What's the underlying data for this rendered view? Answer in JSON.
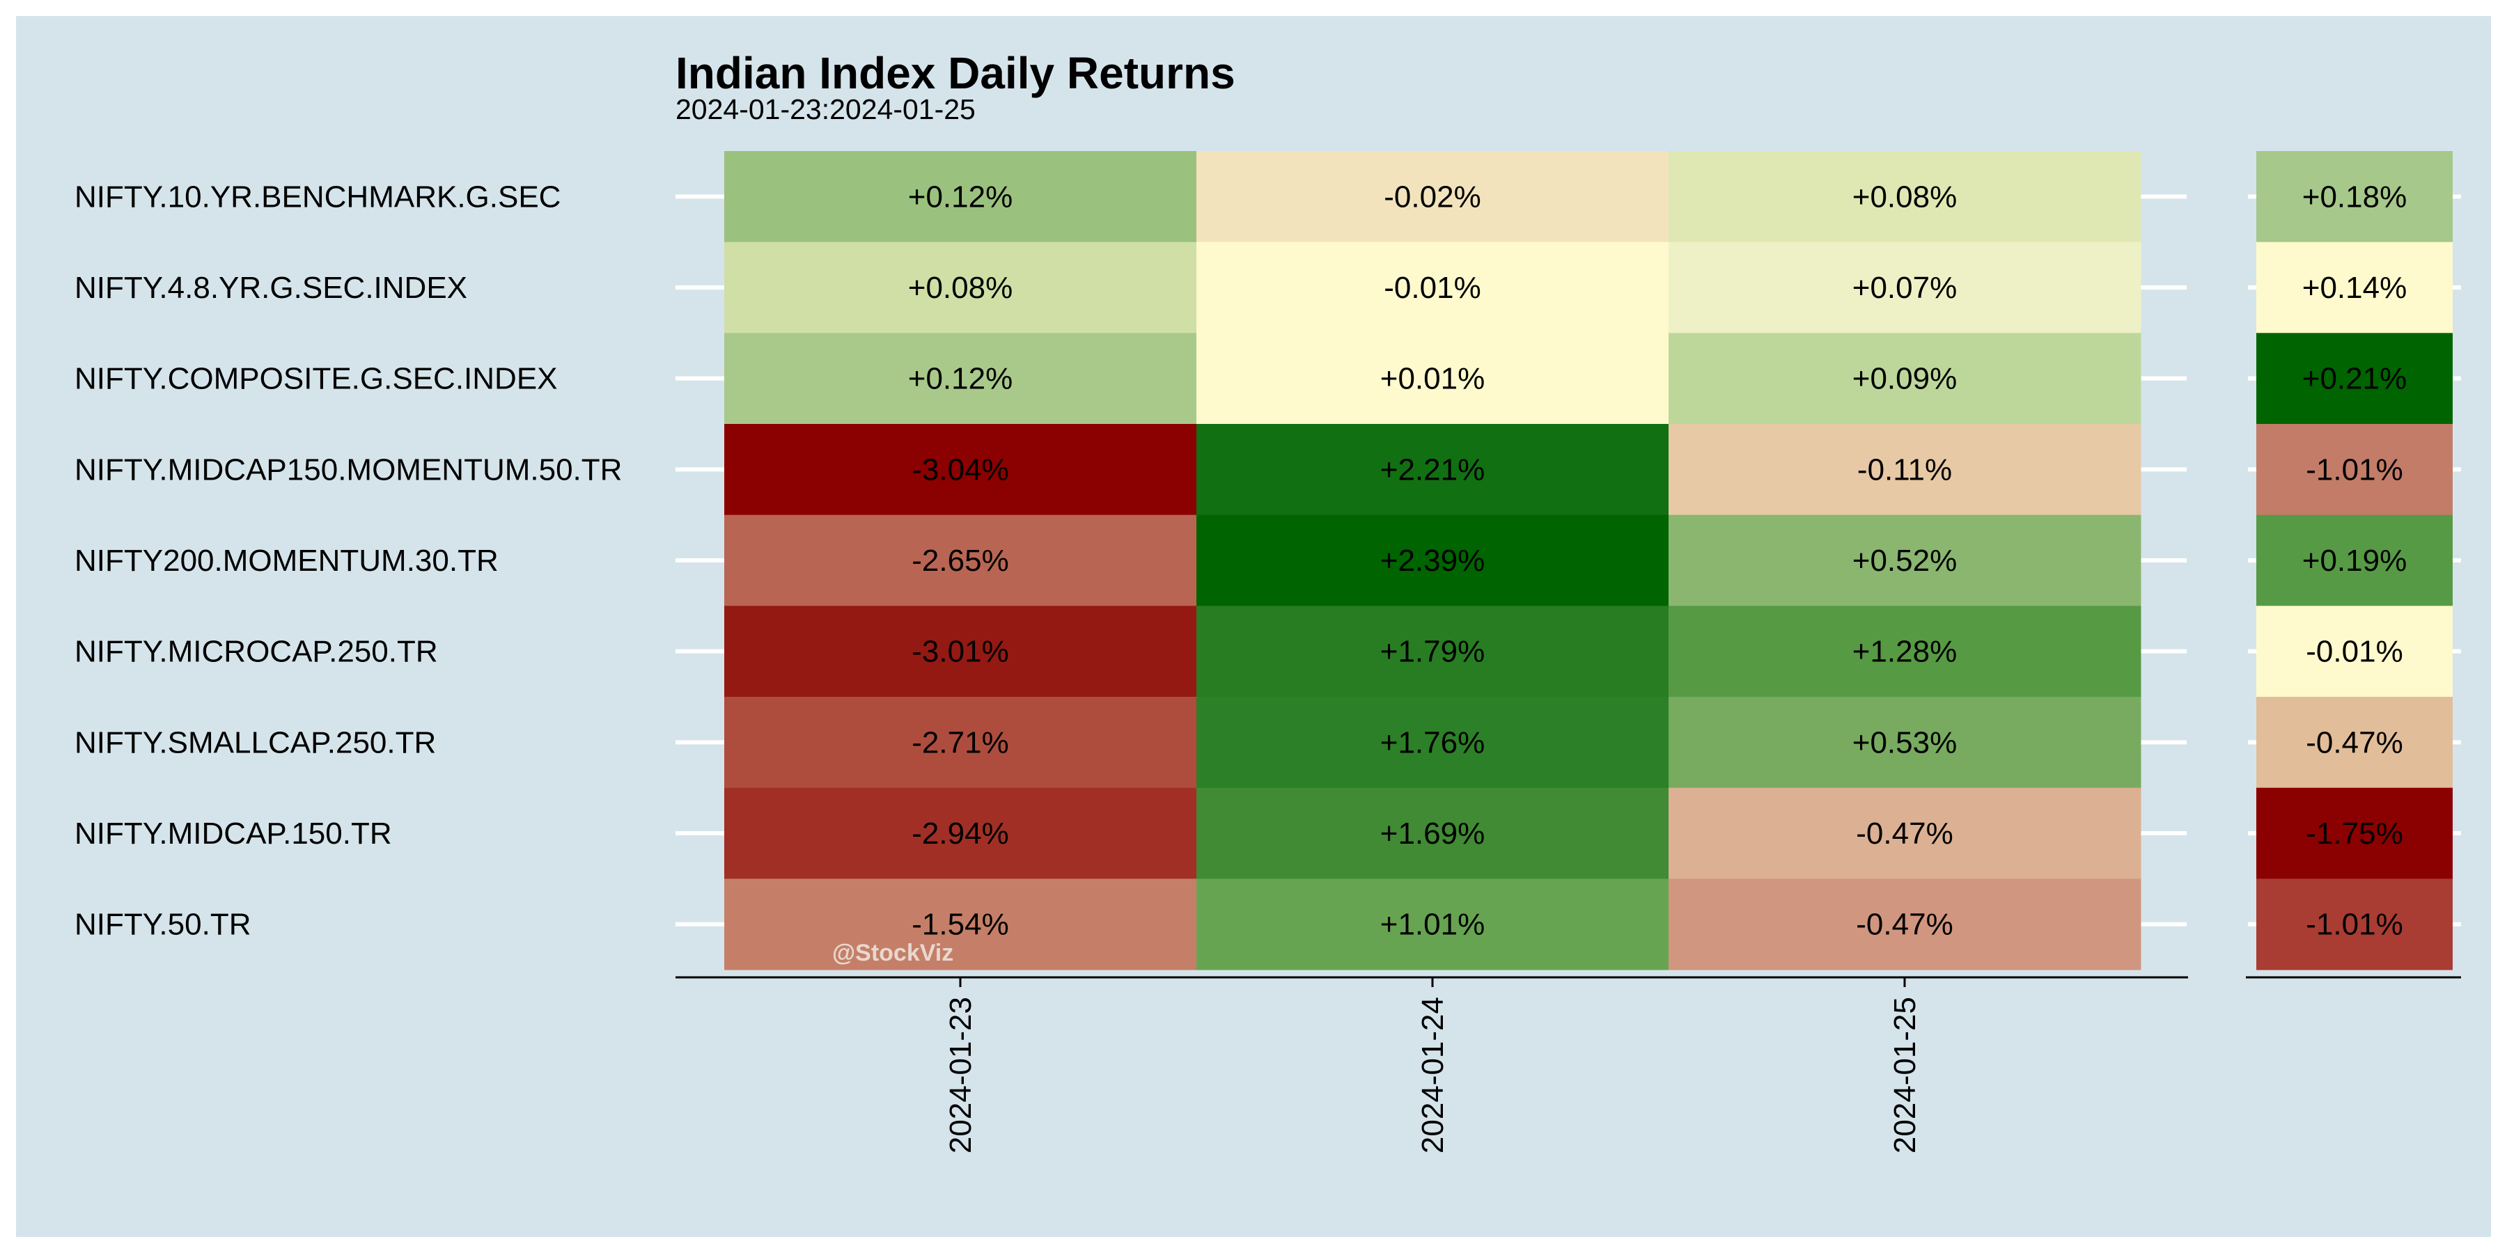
{
  "chart_data": {
    "type": "heatmap",
    "title": "Indian Index Daily Returns",
    "subtitle": "2024-01-23:2024-01-25",
    "watermark": "@StockViz",
    "rows": [
      "NIFTY.10.YR.BENCHMARK.G.SEC",
      "NIFTY.4.8.YR.G.SEC.INDEX",
      "NIFTY.COMPOSITE.G.SEC.INDEX",
      "NIFTY.MIDCAP150.MOMENTUM.50.TR",
      "NIFTY200.MOMENTUM.30.TR",
      "NIFTY.MICROCAP.250.TR",
      "NIFTY.SMALLCAP.250.TR",
      "NIFTY.MIDCAP.150.TR",
      "NIFTY.50.TR"
    ],
    "columns": [
      "2024-01-23",
      "2024-01-24",
      "2024-01-25"
    ],
    "values": [
      [
        0.12,
        -0.02,
        0.08
      ],
      [
        0.08,
        -0.01,
        0.07
      ],
      [
        0.12,
        0.01,
        0.09
      ],
      [
        -3.04,
        2.21,
        -0.11
      ],
      [
        -2.65,
        2.39,
        0.52
      ],
      [
        -3.01,
        1.79,
        1.28
      ],
      [
        -2.71,
        1.76,
        0.53
      ],
      [
        -2.94,
        1.69,
        -0.47
      ],
      [
        -1.54,
        1.01,
        -0.47
      ]
    ],
    "labels": [
      [
        "+0.12%",
        "-0.02%",
        "+0.08%"
      ],
      [
        "+0.08%",
        "-0.01%",
        "+0.07%"
      ],
      [
        "+0.12%",
        "+0.01%",
        "+0.09%"
      ],
      [
        "-3.04%",
        "+2.21%",
        "-0.11%"
      ],
      [
        "-2.65%",
        "+2.39%",
        "+0.52%"
      ],
      [
        "-3.01%",
        "+1.79%",
        "+1.28%"
      ],
      [
        "-2.71%",
        "+1.76%",
        "+0.53%"
      ],
      [
        "-2.94%",
        "+1.69%",
        "-0.47%"
      ],
      [
        "-1.54%",
        "+1.01%",
        "-0.47%"
      ]
    ],
    "total_values": [
      0.18,
      0.14,
      0.21,
      -1.01,
      0.19,
      -0.01,
      -0.47,
      -1.75,
      -1.01
    ],
    "total_labels": [
      "+0.18%",
      "+0.14%",
      "+0.21%",
      "-1.01%",
      "+0.19%",
      "-0.01%",
      "-0.47%",
      "-1.75%",
      "-1.01%"
    ],
    "cell_colors": [
      [
        "#9bc17e",
        "#f3e3bd",
        "#dfe8b3"
      ],
      [
        "#cfdfa6",
        "#fffacd",
        "#eef1c6"
      ],
      [
        "#a9c98a",
        "#fffacd",
        "#bdd79b"
      ],
      [
        "#8b0000",
        "#117011",
        "#e7c9a5"
      ],
      [
        "#b86653",
        "#006400",
        "#8ab670"
      ],
      [
        "#941913",
        "#287d22",
        "#569a44"
      ],
      [
        "#ae4d3e",
        "#2c8027",
        "#78ab5f"
      ],
      [
        "#a12f26",
        "#408b34",
        "#dcb092"
      ],
      [
        "#c57f68",
        "#67a452",
        "#d19680"
      ]
    ],
    "total_colors": [
      "#a6c88a",
      "#fffacd",
      "#006400",
      "#c37c68",
      "#579a45",
      "#fffacd",
      "#e2bd99",
      "#8b0000",
      "#a93c33"
    ],
    "colors": {
      "panel_bg": "#d5e4eb",
      "tick": "#ffffff",
      "axis": "#000000",
      "text": "#000000",
      "watermark": "#e8d8cf"
    }
  }
}
